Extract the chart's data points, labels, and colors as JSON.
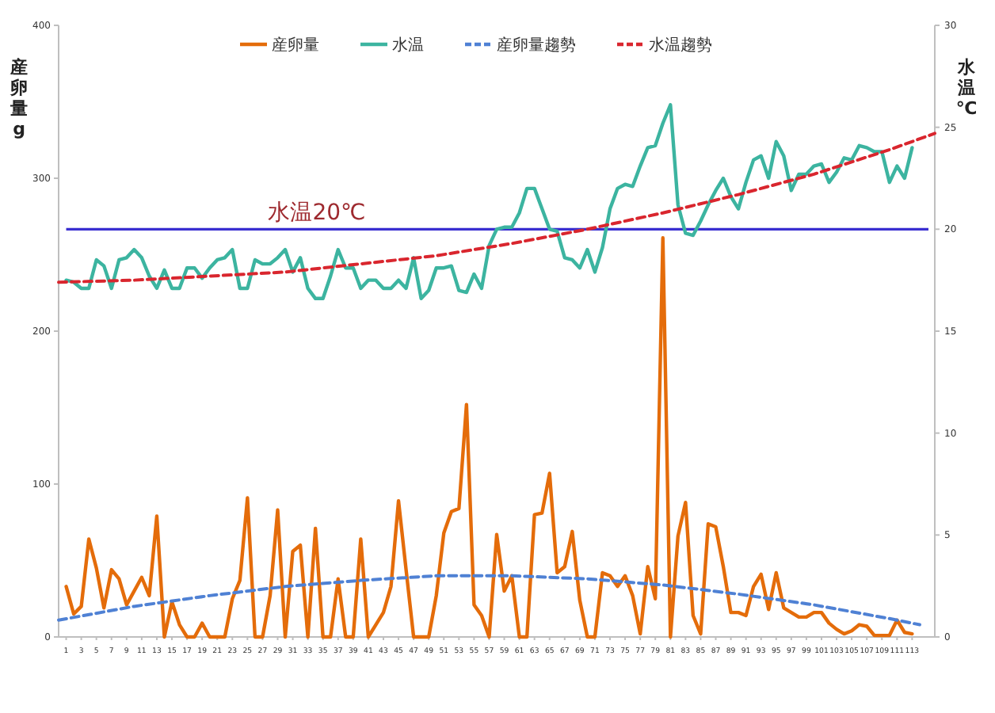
{
  "chart_data": {
    "type": "line",
    "legend": "top",
    "marker": "none",
    "ylabel": "産卵量g",
    "y2label": "水温℃",
    "x": [
      1,
      2,
      3,
      4,
      5,
      6,
      7,
      8,
      9,
      10,
      11,
      12,
      13,
      14,
      15,
      16,
      17,
      18,
      19,
      20,
      21,
      22,
      23,
      24,
      25,
      26,
      27,
      28,
      29,
      30,
      31,
      32,
      33,
      34,
      35,
      36,
      37,
      38,
      39,
      40,
      41,
      42,
      43,
      44,
      45,
      46,
      47,
      48,
      49,
      50,
      51,
      52,
      53,
      54,
      55,
      56,
      57,
      58,
      59,
      60,
      61,
      62,
      63,
      64,
      65,
      66,
      67,
      68,
      69,
      70,
      71,
      72,
      73,
      74,
      75,
      76,
      77,
      78,
      79,
      80,
      81,
      82,
      83,
      84,
      85,
      86,
      87,
      88,
      89,
      90,
      91,
      92,
      93,
      94,
      95,
      96,
      97,
      98,
      99,
      100,
      101,
      102,
      103,
      104,
      105,
      106,
      107,
      108,
      109,
      110,
      111,
      112,
      113
    ],
    "xlim": [
      0,
      116
    ],
    "xticks": [
      1,
      3,
      5,
      7,
      9,
      11,
      13,
      15,
      17,
      19,
      21,
      23,
      25,
      27,
      29,
      31,
      33,
      35,
      37,
      39,
      41,
      43,
      45,
      47,
      49,
      51,
      53,
      55,
      57,
      59,
      61,
      63,
      65,
      67,
      69,
      71,
      73,
      75,
      77,
      79,
      81,
      83,
      85,
      87,
      89,
      91,
      93,
      95,
      97,
      99,
      101,
      103,
      105,
      107,
      109,
      111,
      113
    ],
    "ylim": [
      0,
      400
    ],
    "yticks": [
      0,
      100,
      200,
      300,
      400
    ],
    "y2lim": [
      0,
      30
    ],
    "y2ticks": [
      0,
      5,
      10,
      15,
      20,
      25,
      30
    ],
    "ref_lines": [
      {
        "axis": "y2",
        "value": 20,
        "label": "水温20℃",
        "color": "#3a2fd0"
      }
    ],
    "series": [
      {
        "name": "産卵量",
        "color": "#e46c0a",
        "values": [
          33,
          15,
          20,
          64,
          45,
          19,
          44,
          38,
          21,
          30,
          39,
          27,
          79,
          0,
          23,
          8,
          0,
          0,
          9,
          0,
          0,
          0,
          25,
          37,
          91,
          0,
          0,
          27,
          83,
          0,
          56,
          60,
          0,
          71,
          0,
          0,
          38,
          0,
          0,
          64,
          0,
          8,
          16,
          33,
          89,
          44,
          0,
          0,
          0,
          27,
          68,
          82,
          84,
          152,
          21,
          14,
          0,
          67,
          30,
          40,
          0,
          0,
          80,
          81,
          107,
          42,
          46,
          69,
          24,
          0,
          0,
          42,
          40,
          33,
          40,
          27,
          2,
          46,
          25,
          261,
          0,
          66,
          88,
          14,
          2,
          74,
          72,
          46,
          16,
          16,
          14,
          33,
          41,
          18,
          42,
          19,
          16,
          13,
          13,
          16,
          16,
          9,
          5,
          2,
          4,
          8,
          7,
          1,
          1,
          1,
          11,
          3,
          2
        ]
      },
      {
        "name": "水温",
        "color": "#3cb4a0",
        "axis": "y2",
        "values": [
          17.5,
          17.4,
          17.1,
          17.1,
          18.5,
          18.2,
          17.1,
          18.5,
          18.6,
          19.0,
          18.6,
          17.7,
          17.1,
          18.0,
          17.1,
          17.1,
          18.1,
          18.1,
          17.6,
          18.1,
          18.5,
          18.6,
          19.0,
          17.1,
          17.1,
          18.5,
          18.3,
          18.3,
          18.6,
          19.0,
          17.9,
          18.6,
          17.1,
          16.6,
          16.6,
          17.7,
          19.0,
          18.1,
          18.1,
          17.1,
          17.5,
          17.5,
          17.1,
          17.1,
          17.5,
          17.1,
          18.6,
          16.6,
          17.0,
          18.1,
          18.1,
          18.2,
          17.0,
          16.9,
          17.8,
          17.1,
          19.2,
          20.0,
          20.1,
          20.1,
          20.8,
          22.0,
          22.0,
          21.0,
          20.0,
          19.9,
          18.6,
          18.5,
          18.1,
          19.0,
          17.9,
          19.1,
          21.0,
          22.0,
          22.2,
          22.1,
          23.1,
          24.0,
          24.1,
          25.2,
          26.1,
          21.2,
          19.8,
          19.7,
          20.4,
          21.2,
          21.9,
          22.5,
          21.6,
          21.0,
          22.3,
          23.4,
          23.6,
          22.5,
          24.3,
          23.6,
          21.9,
          22.7,
          22.7,
          23.1,
          23.2,
          22.3,
          22.8,
          23.5,
          23.4,
          24.1,
          24.0,
          23.8,
          23.8,
          22.3,
          23.1,
          22.5,
          24.0
        ]
      },
      {
        "name": "産卵量趨勢",
        "color": "#4f81d4",
        "line_style": "dashed",
        "x": [
          0,
          10,
          20,
          30,
          40,
          50,
          60,
          70,
          80,
          90,
          100,
          110,
          114
        ],
        "values": [
          11,
          20,
          27,
          33,
          37,
          40,
          40,
          38,
          34,
          28,
          21,
          12,
          8
        ]
      },
      {
        "name": "水温趨勢",
        "color": "#d9262e",
        "line_style": "dashed",
        "axis": "y2",
        "x": [
          0,
          10,
          20,
          30,
          40,
          50,
          60,
          70,
          80,
          90,
          100,
          110,
          116
        ],
        "values": [
          17.4,
          17.5,
          17.7,
          17.9,
          18.3,
          18.7,
          19.3,
          20.0,
          20.8,
          21.7,
          22.7,
          23.9,
          24.7
        ]
      }
    ]
  }
}
